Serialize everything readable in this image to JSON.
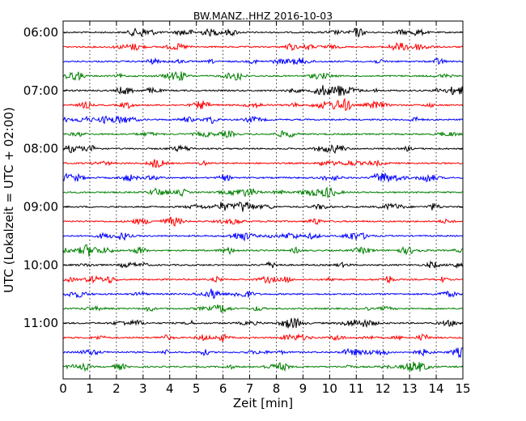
{
  "chart_data": {
    "type": "line",
    "title": "BW.MANZ..HHZ 2016-10-03",
    "xlabel": "Zeit  [min]",
    "ylabel": "UTC (Lokalzeit = UTC + 02:00)",
    "xlim": [
      0,
      15
    ],
    "x_ticks": [
      0,
      1,
      2,
      3,
      4,
      5,
      6,
      7,
      8,
      9,
      10,
      11,
      12,
      13,
      14,
      15
    ],
    "x_tick_labels": [
      "0",
      "1",
      "2",
      "3",
      "4",
      "5",
      "6",
      "7",
      "8",
      "9",
      "10",
      "11",
      "12",
      "13",
      "14",
      "15"
    ],
    "y_tick_labels": [
      "06:00",
      "07:00",
      "08:00",
      "09:00",
      "10:00",
      "11:00"
    ],
    "y_tick_trace_index": [
      0,
      4,
      8,
      12,
      16,
      20
    ],
    "trace_start_times": [
      "06:00",
      "06:15",
      "06:30",
      "06:45",
      "07:00",
      "07:15",
      "07:30",
      "07:45",
      "08:00",
      "08:15",
      "08:30",
      "08:45",
      "09:00",
      "09:15",
      "09:30",
      "09:45",
      "10:00",
      "10:15",
      "10:30",
      "10:45",
      "11:00",
      "11:15",
      "11:30",
      "11:45"
    ],
    "trace_minutes": 15,
    "trace_color_cycle": [
      "#000000",
      "#ff0000",
      "#0000ff",
      "#008000"
    ],
    "grid": "vertical dotted at each minute"
  }
}
